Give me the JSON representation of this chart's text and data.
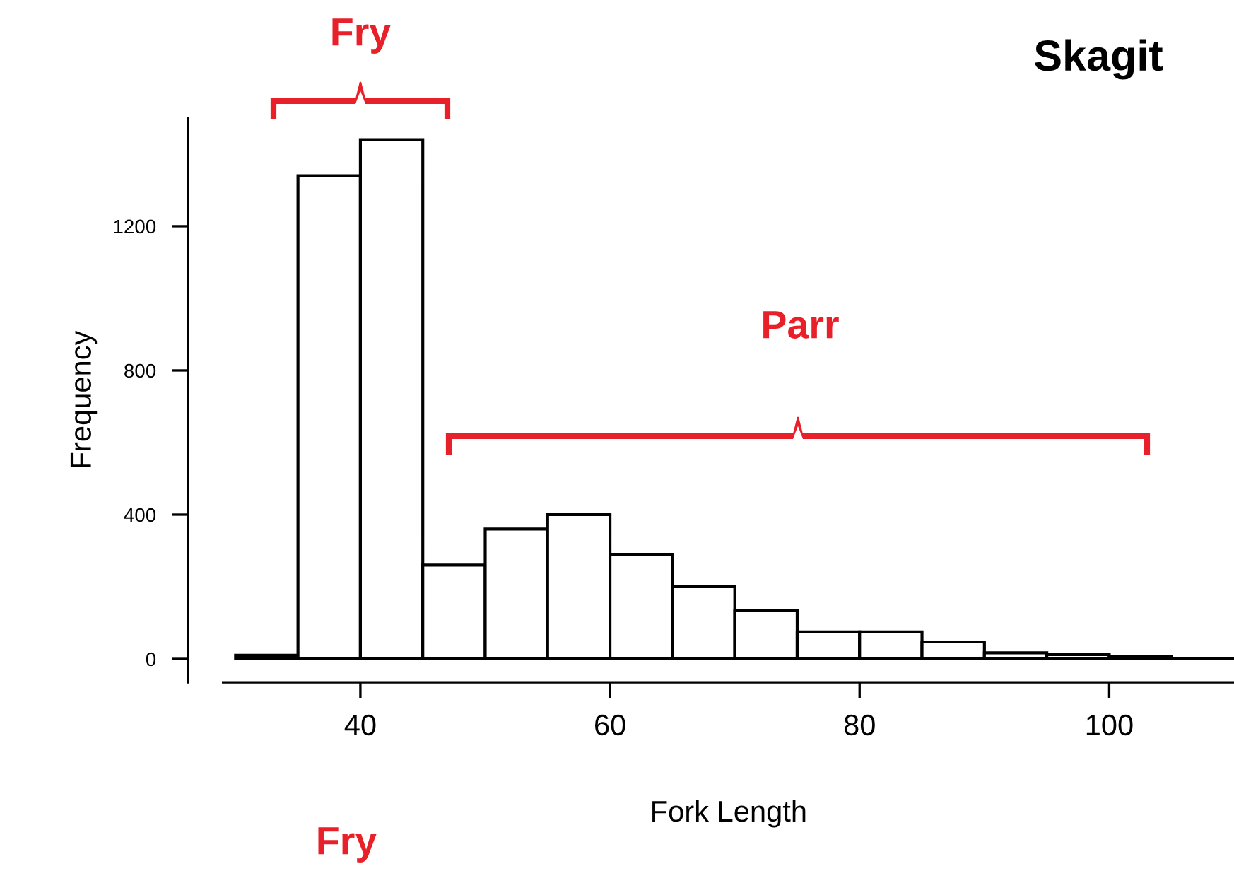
{
  "chart_data": {
    "type": "histogram",
    "xlabel": "Fork Length",
    "ylabel": "Frequency",
    "bins": [
      30,
      35,
      40,
      45,
      50,
      55,
      60,
      65,
      70,
      75,
      80,
      85,
      90,
      95,
      100,
      105,
      110
    ],
    "values": [
      10,
      1340,
      1440,
      260,
      360,
      400,
      290,
      200,
      135,
      75,
      75,
      47,
      17,
      12,
      6,
      2
    ],
    "color": "#ffffff",
    "xlim": [
      29,
      110
    ],
    "xticks": [
      40,
      60,
      80,
      100
    ],
    "ylim": [
      -65,
      1500
    ],
    "yticks": [
      0,
      400,
      800,
      1200
    ],
    "grid": false,
    "legend": false,
    "annotations": [
      "Fry",
      "Parr",
      "Skagit",
      "Fry"
    ]
  }
}
